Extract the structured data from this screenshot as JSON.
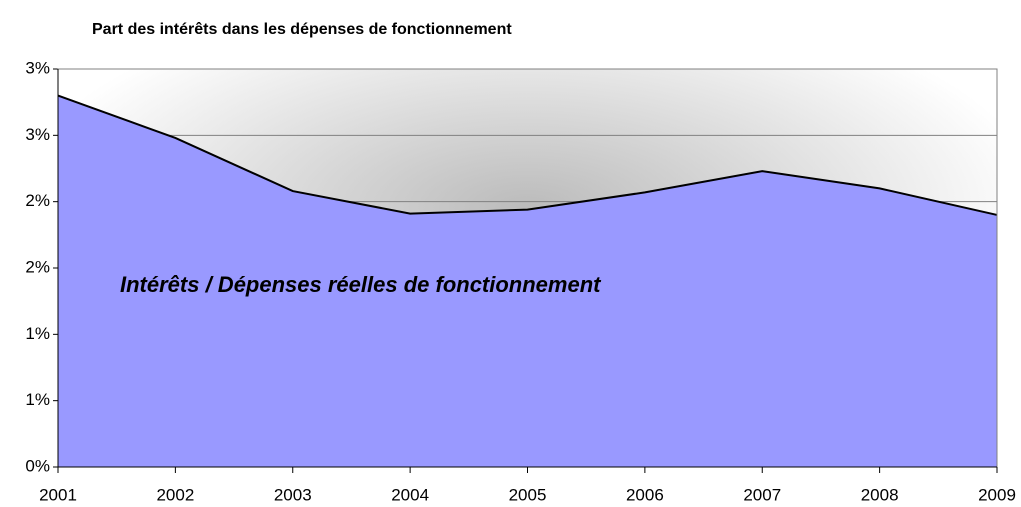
{
  "chart_data": {
    "type": "area",
    "title": "Part des intérêts dans les dépenses de fonctionnement",
    "categories": [
      "2001",
      "2002",
      "2003",
      "2004",
      "2005",
      "2006",
      "2007",
      "2008",
      "2009"
    ],
    "series": [
      {
        "name": "Intérêts / Dépenses réelles de fonctionnement",
        "color": "#9999ff",
        "values": [
          2.8,
          2.48,
          2.08,
          1.91,
          1.94,
          2.07,
          2.23,
          2.1,
          1.9
        ]
      }
    ],
    "ylim": [
      0,
      3
    ],
    "yticks": [
      {
        "value": 0,
        "label": "0%"
      },
      {
        "value": 0.5,
        "label": "1%"
      },
      {
        "value": 1,
        "label": "1%"
      },
      {
        "value": 1.5,
        "label": "2%"
      },
      {
        "value": 2,
        "label": "2%"
      },
      {
        "value": 2.5,
        "label": "3%"
      },
      {
        "value": 3,
        "label": "3%"
      }
    ],
    "grid": true
  }
}
